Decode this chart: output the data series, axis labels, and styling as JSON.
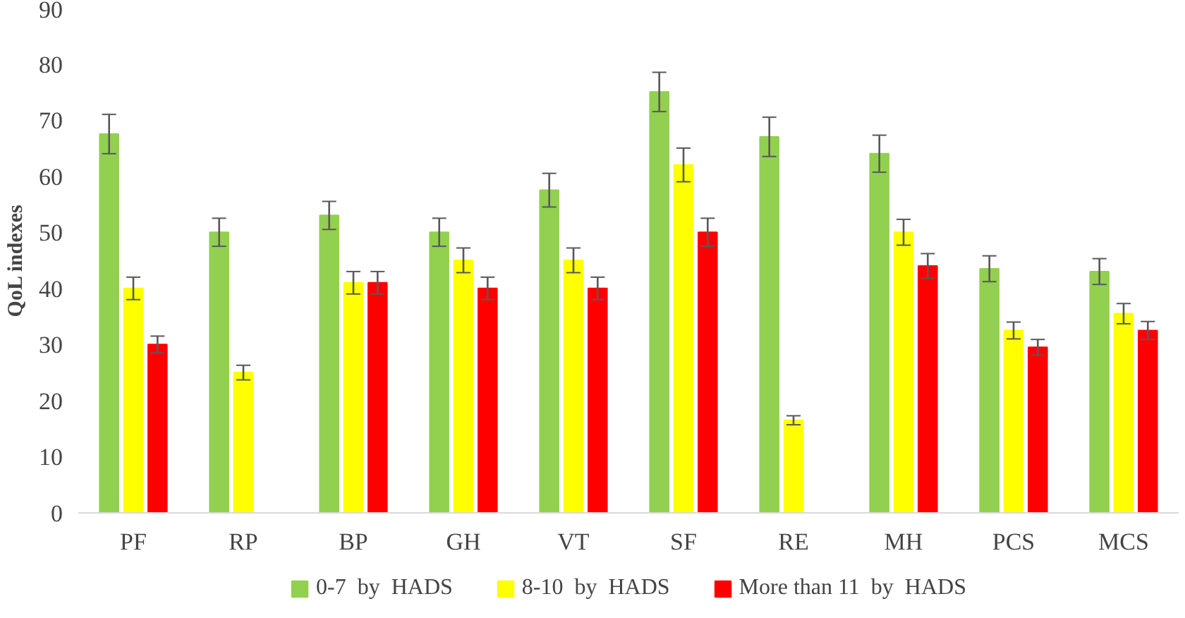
{
  "chart_data": {
    "type": "bar",
    "ylabel": "QoL indexes",
    "categories": [
      "PF",
      "RP",
      "BP",
      "GH",
      "VT",
      "SF",
      "RE",
      "MH",
      "PCS",
      "MCS"
    ],
    "series": [
      {
        "name": "0-7  by  HADS",
        "color": "#92d050",
        "values": [
          67.5,
          50,
          53,
          50,
          57.5,
          75,
          67,
          64,
          43.5,
          43
        ],
        "errors": [
          3.5,
          2.5,
          2.5,
          2.5,
          3,
          3.5,
          3.5,
          3.3,
          2.3,
          2.3
        ]
      },
      {
        "name": "8-10  by  HADS",
        "color": "#ffff00",
        "values": [
          40,
          25,
          41,
          45,
          45,
          62,
          16.5,
          50,
          32.5,
          35.5
        ],
        "errors": [
          2,
          1.3,
          2,
          2.2,
          2.2,
          3,
          0.8,
          2.3,
          1.5,
          1.8
        ]
      },
      {
        "name": "More than 11  by  HADS",
        "color": "#ff0000",
        "values": [
          30,
          null,
          41,
          40,
          40,
          50,
          null,
          44,
          29.5,
          32.5
        ],
        "errors": [
          1.5,
          null,
          2,
          2,
          2,
          2.5,
          null,
          2.2,
          1.4,
          1.6
        ]
      }
    ],
    "ylim": [
      0,
      90
    ],
    "yticks": [
      0,
      10,
      20,
      30,
      40,
      50,
      60,
      70,
      80,
      90
    ],
    "grid": false,
    "legend": "bottom"
  }
}
